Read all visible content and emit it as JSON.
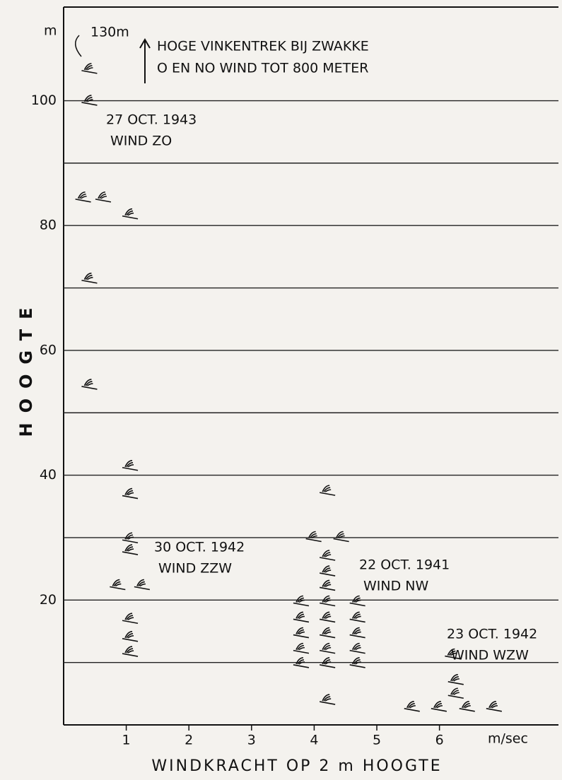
{
  "chart_data": {
    "type": "scatter",
    "y_unit": "m",
    "x_unit": "m/sec",
    "xlabel": "WINDKRACHT OP 2 m HOOGTE",
    "ylabel": "HOOGTE",
    "annotations": [
      "HOGE VINKENTREK BIJ ZWAKKE",
      "O EN NO WIND TOT 800 METER",
      "130m"
    ],
    "xlim": [
      0,
      7.9
    ],
    "ylim": [
      0,
      115
    ],
    "xticks": [
      1,
      2,
      3,
      4,
      5,
      6
    ],
    "yticks": [
      20,
      40,
      60,
      80,
      100
    ],
    "ygrid": [
      10,
      20,
      30,
      40,
      50,
      60,
      70,
      80,
      90,
      100
    ],
    "color": "#111111",
    "series": [
      {
        "name": "27 OCT. 1943",
        "wind": "WIND ZO",
        "x": [
          0.4,
          0.4,
          0.3,
          0.62,
          0.4,
          0.4
        ],
        "values": [
          104.6,
          99.5,
          84,
          84,
          71,
          54
        ]
      },
      {
        "name": "30 OCT. 1942",
        "wind": "WIND ZZW",
        "x": [
          1.05,
          1.05,
          1.05,
          1.05,
          1.05,
          0.85,
          1.24,
          1.05,
          1.05,
          1.05
        ],
        "values": [
          81.3,
          41,
          36.5,
          29.4,
          27.5,
          21.9,
          21.9,
          16.5,
          13.6,
          11.2
        ]
      },
      {
        "name": "22 OCT. 1941",
        "wind": "WIND NW",
        "x": [
          4.2,
          3.98,
          4.42,
          4.2,
          4.2,
          4.2,
          4.2,
          4.2,
          4.2,
          4.2,
          4.2,
          4.2,
          3.78,
          3.78,
          3.78,
          3.78,
          3.78,
          4.68,
          4.68,
          4.68,
          4.68,
          4.68
        ],
        "values": [
          37,
          29.6,
          29.6,
          26.6,
          24.1,
          21.8,
          19.3,
          16.7,
          14.2,
          11.7,
          9.4,
          3.5,
          19.3,
          16.7,
          14.2,
          11.7,
          9.4,
          19.3,
          16.7,
          14.2,
          11.7,
          9.4
        ]
      },
      {
        "name": "23 OCT. 1942",
        "wind": "WIND WZW",
        "x": [
          6.2,
          6.25,
          6.25,
          5.55,
          5.98,
          6.43,
          6.86
        ],
        "values": [
          10.8,
          6.7,
          4.5,
          2.4,
          2.4,
          2.4,
          2.4
        ]
      }
    ]
  }
}
